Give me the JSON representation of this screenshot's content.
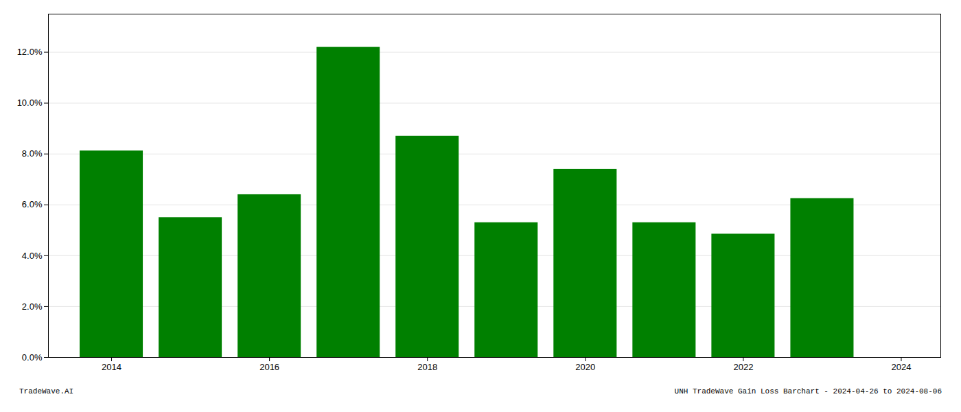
{
  "chart_data": {
    "type": "bar",
    "x": [
      2014,
      2015,
      2016,
      2017,
      2018,
      2019,
      2020,
      2021,
      2022,
      2023
    ],
    "values": [
      0.0812,
      0.055,
      0.064,
      0.122,
      0.087,
      0.053,
      0.074,
      0.053,
      0.0485,
      0.0625
    ],
    "color": "#008000",
    "xlim": [
      2013.2,
      2024.5
    ],
    "xticks": [
      2014,
      2016,
      2018,
      2020,
      2022,
      2024
    ],
    "ylim": [
      0,
      0.135
    ],
    "yticks": [
      {
        "value": 0.0,
        "label": "0.0%"
      },
      {
        "value": 0.02,
        "label": "2.0%"
      },
      {
        "value": 0.04,
        "label": "4.0%"
      },
      {
        "value": 0.06,
        "label": "6.0%"
      },
      {
        "value": 0.08,
        "label": "8.0%"
      },
      {
        "value": 0.1,
        "label": "10.0%"
      },
      {
        "value": 0.12,
        "label": "12.0%"
      }
    ],
    "grid": true,
    "annotations": [
      "TradeWave.AI",
      "UNH TradeWave Gain Loss Barchart - 2024-04-26 to 2024-08-06"
    ]
  }
}
